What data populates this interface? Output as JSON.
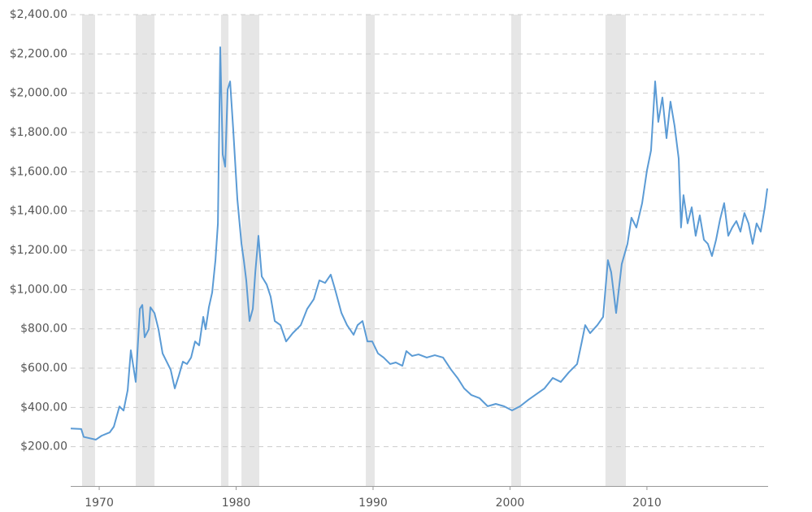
{
  "chart_data": {
    "type": "line",
    "xlim": [
      1967.92,
      2018.79
    ],
    "xticks": [
      1970,
      1980,
      1990,
      2000,
      2010
    ],
    "ylim": [
      0,
      2400
    ],
    "yticks": [
      {
        "value": 200,
        "label": "$200.00"
      },
      {
        "value": 400,
        "label": "$400.00"
      },
      {
        "value": 600,
        "label": "$600.00"
      },
      {
        "value": 800,
        "label": "$800.00"
      },
      {
        "value": 1000,
        "label": "$1,000.00"
      },
      {
        "value": 1200,
        "label": "$1,200.00"
      },
      {
        "value": 1400,
        "label": "$1,400.00"
      },
      {
        "value": 1600,
        "label": "$1,600.00"
      },
      {
        "value": 1800,
        "label": "$1,800.00"
      },
      {
        "value": 2000,
        "label": "$2,000.00"
      },
      {
        "value": 2200,
        "label": "$2,200.00"
      },
      {
        "value": 2400,
        "label": "$2,400.00"
      }
    ],
    "grid": true,
    "recession_color": "#e6e6e6",
    "recessions": [
      [
        1968.75,
        1969.7
      ],
      [
        1972.67,
        1974.04
      ],
      [
        1978.9,
        1979.44
      ],
      [
        1980.39,
        1981.69
      ],
      [
        1989.47,
        1990.12
      ],
      [
        2000.09,
        2000.8
      ],
      [
        2006.97,
        2008.46
      ]
    ],
    "x": [
      1967.92,
      1968.69,
      1968.87,
      1969.76,
      1970.18,
      1970.77,
      1971.07,
      1971.48,
      1971.78,
      1972.08,
      1972.31,
      1972.67,
      1972.97,
      1973.15,
      1973.32,
      1973.62,
      1973.74,
      1974.04,
      1974.33,
      1974.63,
      1974.93,
      1975.22,
      1975.52,
      1975.82,
      1976.11,
      1976.41,
      1976.71,
      1977.0,
      1977.3,
      1977.6,
      1977.77,
      1978.01,
      1978.25,
      1978.49,
      1978.67,
      1978.84,
      1979.02,
      1979.2,
      1979.38,
      1979.56,
      1979.79,
      1980.09,
      1980.39,
      1980.56,
      1980.74,
      1980.98,
      1981.22,
      1981.4,
      1981.63,
      1981.87,
      1982.23,
      1982.52,
      1982.82,
      1983.24,
      1983.65,
      1984.13,
      1984.72,
      1985.19,
      1985.67,
      1986.08,
      1986.5,
      1986.91,
      1987.21,
      1987.69,
      1988.1,
      1988.58,
      1988.87,
      1989.23,
      1989.59,
      1989.94,
      1990.36,
      1990.77,
      1991.25,
      1991.66,
      1992.14,
      1992.43,
      1992.85,
      1993.32,
      1993.92,
      1994.51,
      1995.11,
      1995.7,
      1996.17,
      1996.65,
      1997.18,
      1997.78,
      1998.37,
      1998.96,
      1999.56,
      2000.15,
      2000.74,
      2001.34,
      2001.93,
      2002.52,
      2003.12,
      2003.71,
      2004.3,
      2004.9,
      2005.25,
      2005.49,
      2005.85,
      2006.38,
      2006.8,
      2007.15,
      2007.39,
      2007.75,
      2008.16,
      2008.58,
      2008.87,
      2009.23,
      2009.65,
      2010.0,
      2010.3,
      2010.6,
      2010.83,
      2011.13,
      2011.43,
      2011.72,
      2012.02,
      2012.32,
      2012.49,
      2012.67,
      2012.97,
      2013.27,
      2013.56,
      2013.86,
      2014.16,
      2014.45,
      2014.75,
      2015.05,
      2015.34,
      2015.64,
      2015.94,
      2016.23,
      2016.53,
      2016.83,
      2017.12,
      2017.42,
      2017.72,
      2018.01,
      2018.31,
      2018.61,
      2018.79
    ],
    "series": [
      {
        "color": "#5b9bd5",
        "values": [
          293,
          290,
          250,
          236,
          256,
          273,
          302,
          405,
          384,
          488,
          691,
          530,
          902,
          922,
          757,
          798,
          910,
          880,
          798,
          675,
          633,
          592,
          497,
          563,
          633,
          621,
          654,
          736,
          716,
          861,
          798,
          910,
          985,
          1150,
          1337,
          2234,
          1688,
          1626,
          2019,
          2060,
          1812,
          1460,
          1233,
          1150,
          1047,
          840,
          902,
          1088,
          1274,
          1067,
          1026,
          964,
          840,
          819,
          736,
          778,
          819,
          902,
          951,
          1047,
          1034,
          1076,
          1005,
          881,
          819,
          770,
          819,
          840,
          736,
          736,
          675,
          654,
          621,
          629,
          612,
          687,
          662,
          670,
          654,
          666,
          654,
          592,
          550,
          497,
          463,
          447,
          406,
          418,
          406,
          385,
          406,
          439,
          468,
          497,
          550,
          530,
          579,
          621,
          736,
          819,
          778,
          819,
          861,
          1150,
          1088,
          881,
          1130,
          1233,
          1366,
          1316,
          1440,
          1606,
          1709,
          2060,
          1854,
          1978,
          1771,
          1957,
          1833,
          1667,
          1316,
          1481,
          1337,
          1419,
          1274,
          1378,
          1254,
          1233,
          1171,
          1254,
          1357,
          1440,
          1274,
          1316,
          1349,
          1295,
          1390,
          1337,
          1233,
          1337,
          1295,
          1419,
          1515
        ]
      }
    ]
  }
}
